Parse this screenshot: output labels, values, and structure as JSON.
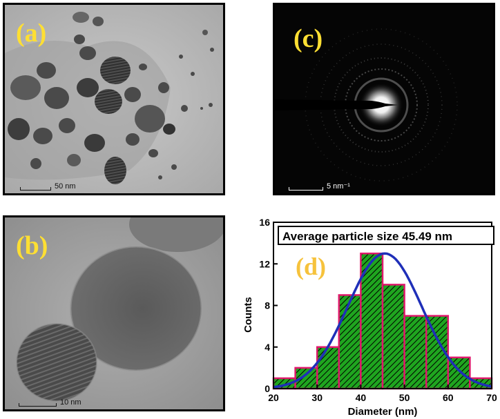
{
  "panels": {
    "a": {
      "label": "(a)",
      "scale_text": "50 nm"
    },
    "b": {
      "label": "(b)",
      "scale_text": "10 nm"
    },
    "c": {
      "label": "(c)",
      "scale_text": "5 nm⁻¹"
    },
    "d": {
      "label": "(d)"
    }
  },
  "chart_data": {
    "type": "bar",
    "subtype": "histogram-with-gaussian-fit",
    "annotation": "Average particle size 45.49 nm",
    "xlabel": "Diameter (nm)",
    "ylabel": "Counts",
    "xlim": [
      20,
      70
    ],
    "ylim": [
      0,
      16
    ],
    "xticks": [
      20,
      30,
      40,
      50,
      60,
      70
    ],
    "yticks": [
      0,
      4,
      8,
      12,
      16
    ],
    "bins": [
      {
        "start": 20,
        "end": 25,
        "count": 1
      },
      {
        "start": 25,
        "end": 30,
        "count": 2
      },
      {
        "start": 30,
        "end": 35,
        "count": 4
      },
      {
        "start": 35,
        "end": 40,
        "count": 9
      },
      {
        "start": 40,
        "end": 45,
        "count": 13
      },
      {
        "start": 45,
        "end": 50,
        "count": 10
      },
      {
        "start": 50,
        "end": 55,
        "count": 7
      },
      {
        "start": 55,
        "end": 60,
        "count": 7
      },
      {
        "start": 60,
        "end": 65,
        "count": 3
      },
      {
        "start": 65,
        "end": 70,
        "count": 1
      }
    ],
    "fit": {
      "type": "gaussian",
      "mean": 45.49,
      "sigma": 8.5,
      "peak": 13
    },
    "colors": {
      "bar_fill": "#1fa51f",
      "bar_edge": "#e0186c",
      "hatch": "#000000",
      "fit_line": "#1f2fb8"
    },
    "grid": false
  }
}
